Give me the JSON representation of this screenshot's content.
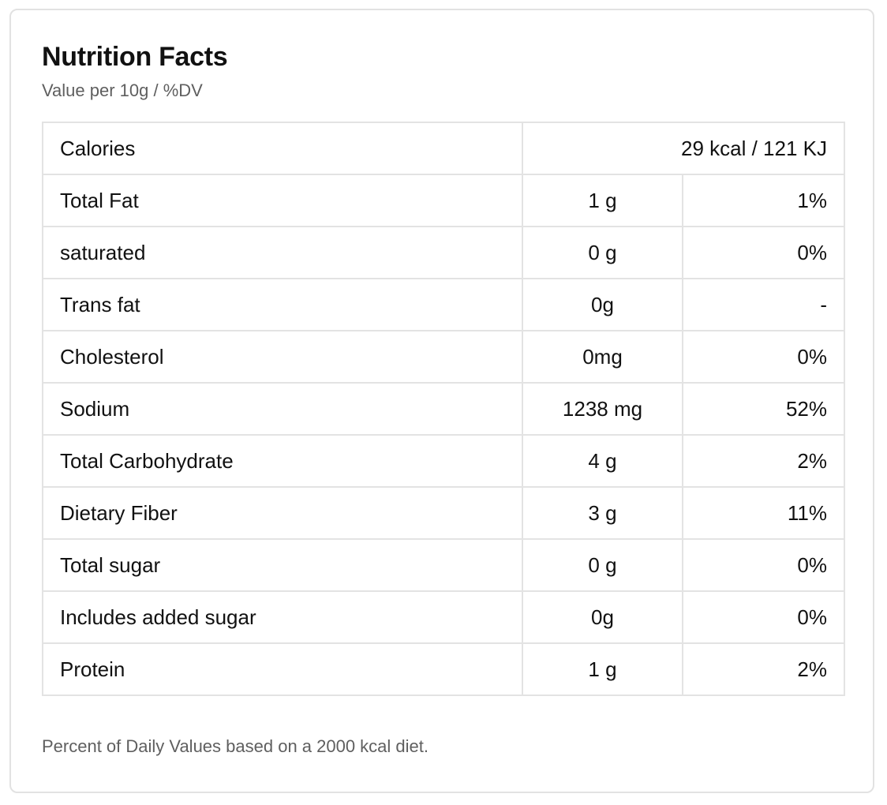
{
  "title": "Nutrition Facts",
  "subtitle": "Value per 10g / %DV",
  "calories": {
    "label": "Calories",
    "value": "29 kcal / 121 KJ"
  },
  "nutrients": [
    {
      "name": "Total Fat",
      "amount": "1 g",
      "dv": "1%"
    },
    {
      "name": "saturated",
      "amount": "0 g",
      "dv": "0%"
    },
    {
      "name": "Trans fat",
      "amount": "0g",
      "dv": "-"
    },
    {
      "name": "Cholesterol",
      "amount": "0mg",
      "dv": "0%"
    },
    {
      "name": "Sodium",
      "amount": "1238 mg",
      "dv": "52%"
    },
    {
      "name": "Total Carbohydrate",
      "amount": "4 g",
      "dv": "2%"
    },
    {
      "name": "Dietary Fiber",
      "amount": "3 g",
      "dv": "11%"
    },
    {
      "name": "Total sugar",
      "amount": "0 g",
      "dv": "0%"
    },
    {
      "name": "Includes added sugar",
      "amount": "0g",
      "dv": "0%"
    },
    {
      "name": "Protein",
      "amount": "1 g",
      "dv": "2%"
    }
  ],
  "footnote": "Percent of Daily Values based on a 2000 kcal diet."
}
